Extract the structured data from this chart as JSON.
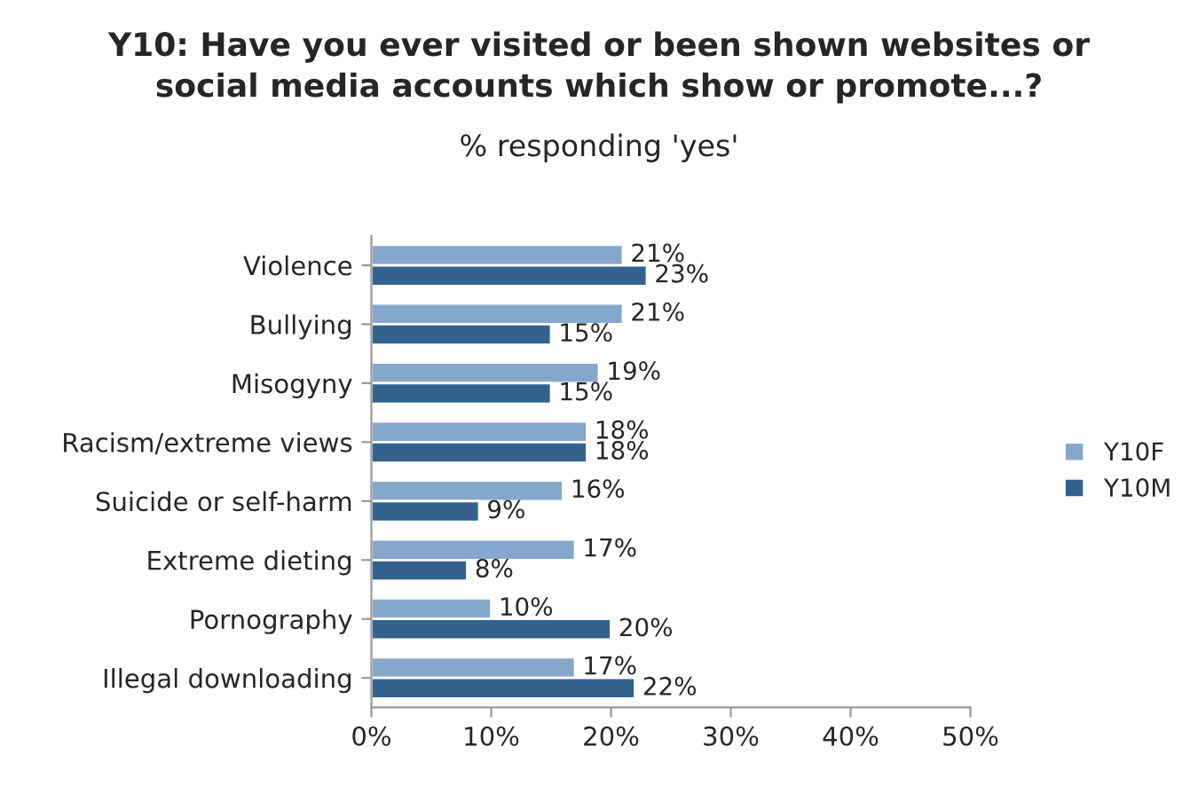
{
  "chart_data": {
    "type": "bar",
    "orientation": "horizontal",
    "title": "Y10: Have you ever visited or been shown websites or\nsocial media accounts which show or promote...?",
    "subtitle": "% responding 'yes'",
    "categories": [
      "Violence",
      "Bullying",
      "Misogyny",
      "Racism/extreme views",
      "Suicide or self-harm",
      "Extreme dieting",
      "Pornography",
      "Illegal downloading"
    ],
    "series": [
      {
        "name": "Y10F",
        "color": "#86a7cc",
        "values": [
          21,
          21,
          19,
          18,
          16,
          17,
          10,
          17
        ],
        "value_labels": [
          "21%",
          "21%",
          "19%",
          "18%",
          "16%",
          "17%",
          "10%",
          "17%"
        ]
      },
      {
        "name": "Y10M",
        "color": "#33628f",
        "values": [
          23,
          15,
          15,
          18,
          9,
          8,
          20,
          22
        ],
        "value_labels": [
          "23%",
          "15%",
          "15%",
          "18%",
          "9%",
          "8%",
          "20%",
          "22%"
        ]
      }
    ],
    "xlim": [
      0,
      50
    ],
    "xticks": [
      {
        "value": 0,
        "label": "0%"
      },
      {
        "value": 10,
        "label": "10%"
      },
      {
        "value": 20,
        "label": "20%"
      },
      {
        "value": 30,
        "label": "30%"
      },
      {
        "value": 40,
        "label": "40%"
      },
      {
        "value": 50,
        "label": "50%"
      }
    ],
    "grid": false,
    "legend": "right"
  }
}
